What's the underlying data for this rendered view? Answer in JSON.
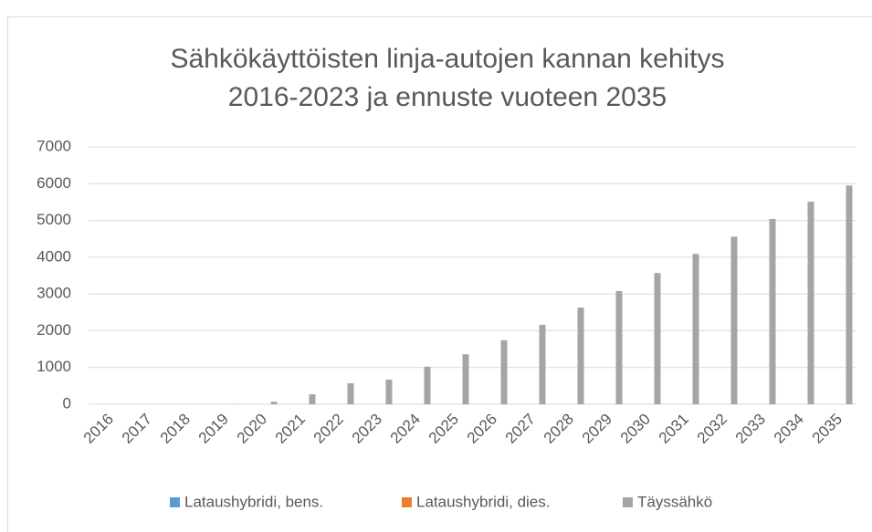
{
  "chart_data": {
    "type": "bar",
    "title": [
      "Sähkökäyttöisten linja-autojen kannan kehitys",
      "2016-2023 ja ennuste vuoteen 2035"
    ],
    "categories": [
      "2016",
      "2017",
      "2018",
      "2019",
      "2020",
      "2021",
      "2022",
      "2023",
      "2024",
      "2025",
      "2026",
      "2027",
      "2028",
      "2029",
      "2030",
      "2031",
      "2032",
      "2033",
      "2034",
      "2035"
    ],
    "series": [
      {
        "name": "Lataushybridi, bens.",
        "color": "#5b9bd5",
        "values": [
          0,
          0,
          0,
          0,
          0,
          0,
          0,
          0,
          0,
          0,
          0,
          0,
          0,
          0,
          0,
          0,
          0,
          0,
          0,
          0
        ]
      },
      {
        "name": "Lataushybridi, dies.",
        "color": "#ed7d31",
        "values": [
          0,
          0,
          0,
          0,
          0,
          0,
          0,
          0,
          0,
          0,
          0,
          0,
          0,
          0,
          0,
          0,
          0,
          0,
          0,
          0
        ]
      },
      {
        "name": "Täyssähkö",
        "color": "#a5a5a5",
        "values": [
          0,
          0,
          0,
          5,
          70,
          270,
          570,
          670,
          1020,
          1360,
          1740,
          2160,
          2630,
          3080,
          3570,
          4090,
          4560,
          5040,
          5510,
          5950
        ]
      }
    ],
    "ylim": [
      0,
      7000
    ],
    "yticks": [
      0,
      1000,
      2000,
      3000,
      4000,
      5000,
      6000,
      7000
    ],
    "grid": true,
    "legend": "bottom"
  }
}
